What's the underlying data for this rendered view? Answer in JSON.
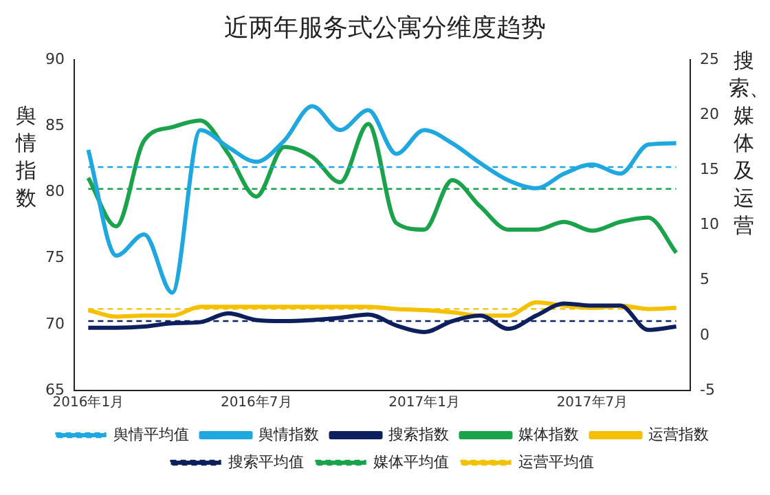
{
  "chart_data": {
    "type": "line",
    "title": "近两年服务式公寓分维度趋势",
    "ylabel": "舆情指数",
    "y2label": "搜索、媒体及运营",
    "categories": [
      "2016年1月",
      null,
      null,
      null,
      null,
      null,
      "2016年7月",
      null,
      null,
      null,
      null,
      null,
      "2017年1月",
      null,
      null,
      null,
      null,
      null,
      "2017年7月",
      null,
      null,
      null
    ],
    "series": [
      {
        "name": "舆情平均值",
        "color": "#1fa8e0",
        "line_style": "dashed",
        "values": [
          81.9,
          81.9,
          81.9,
          81.9,
          81.9,
          81.9,
          81.9,
          81.9,
          81.9,
          81.9,
          81.9,
          81.9,
          81.9,
          81.9,
          81.9,
          81.9,
          81.9,
          81.9,
          81.9,
          81.9,
          81.9,
          81.9
        ]
      },
      {
        "name": "舆情指数",
        "color": "#1fa8e0",
        "values": [
          83.2,
          75.2,
          76.8,
          72.4,
          84.7,
          83.4,
          82.3,
          83.9,
          86.5,
          84.7,
          86.2,
          82.9,
          84.7,
          83.7,
          82.2,
          80.9,
          80.3,
          81.4,
          82.1,
          81.4,
          83.6,
          83.7
        ]
      },
      {
        "name": "搜索指数",
        "color": "#0d1f5c",
        "axis": "y2",
        "values": [
          0.7,
          0.7,
          0.8,
          1.1,
          1.2,
          2.0,
          1.4,
          1.3,
          1.4,
          1.6,
          1.9,
          0.9,
          0.3,
          1.3,
          1.8,
          0.6,
          1.8,
          2.9,
          2.7,
          2.7,
          0.5,
          0.8
        ]
      },
      {
        "name": "媒体指数",
        "color": "#1aa34a",
        "axis": "y2",
        "values": [
          14.3,
          9.9,
          17.7,
          18.9,
          19.5,
          16.5,
          12.6,
          17.1,
          16.2,
          13.9,
          19.2,
          10.2,
          9.6,
          14.1,
          11.7,
          9.6,
          9.6,
          10.3,
          9.5,
          10.3,
          10.7,
          7.5
        ]
      },
      {
        "name": "运营指数",
        "color": "#f5c000",
        "axis": "y2",
        "values": [
          2.3,
          1.7,
          1.8,
          1.8,
          2.6,
          2.6,
          2.6,
          2.6,
          2.6,
          2.6,
          2.6,
          2.4,
          2.3,
          2.1,
          1.8,
          1.8,
          3.0,
          2.7,
          2.5,
          2.7,
          2.4,
          2.5
        ]
      },
      {
        "name": "搜索平均值",
        "color": "#0d1f5c",
        "axis": "y2",
        "line_style": "dashed",
        "values": [
          1.3,
          1.3,
          1.3,
          1.3,
          1.3,
          1.3,
          1.3,
          1.3,
          1.3,
          1.3,
          1.3,
          1.3,
          1.3,
          1.3,
          1.3,
          1.3,
          1.3,
          1.3,
          1.3,
          1.3,
          1.3,
          1.3
        ]
      },
      {
        "name": "媒体平均值",
        "color": "#1aa34a",
        "axis": "y2",
        "line_style": "dashed",
        "values": [
          13.3,
          13.3,
          13.3,
          13.3,
          13.3,
          13.3,
          13.3,
          13.3,
          13.3,
          13.3,
          13.3,
          13.3,
          13.3,
          13.3,
          13.3,
          13.3,
          13.3,
          13.3,
          13.3,
          13.3,
          13.3,
          13.3
        ]
      },
      {
        "name": "运营平均值",
        "color": "#f5c000",
        "axis": "y2",
        "line_style": "dashed",
        "values": [
          2.4,
          2.4,
          2.4,
          2.4,
          2.4,
          2.4,
          2.4,
          2.4,
          2.4,
          2.4,
          2.4,
          2.4,
          2.4,
          2.4,
          2.4,
          2.4,
          2.4,
          2.4,
          2.4,
          2.4,
          2.4,
          2.4
        ]
      }
    ],
    "ylim": [
      65,
      90
    ],
    "yticks": [
      65,
      70,
      75,
      80,
      85,
      90
    ],
    "y2lim": [
      -5,
      25
    ],
    "y2ticks": [
      -5,
      0,
      5,
      10,
      15,
      20,
      25
    ],
    "legend": "bottom"
  }
}
